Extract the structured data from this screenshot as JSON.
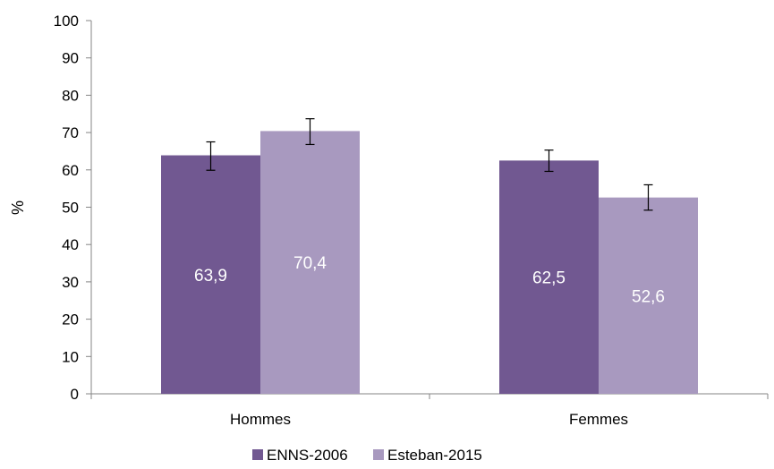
{
  "chart_data": {
    "type": "bar",
    "categories": [
      "Hommes",
      "Femmes"
    ],
    "series": [
      {
        "name": "ENNS-2006",
        "color": "#715891",
        "values": [
          63.9,
          62.5
        ],
        "labels": [
          "63,9",
          "62,5"
        ],
        "error_low": [
          59.9,
          59.6
        ],
        "error_high": [
          67.5,
          65.3
        ]
      },
      {
        "name": "Esteban-2015",
        "color": "#a899bf",
        "values": [
          70.4,
          52.6
        ],
        "labels": [
          "70,4",
          "52,6"
        ],
        "error_low": [
          66.8,
          49.2
        ],
        "error_high": [
          73.7,
          56.0
        ]
      }
    ],
    "ylabel": "%",
    "ylim": [
      0,
      100
    ],
    "yticks": [
      0,
      10,
      20,
      30,
      40,
      50,
      60,
      70,
      80,
      90,
      100
    ],
    "grid": false,
    "legend_position": "bottom"
  }
}
